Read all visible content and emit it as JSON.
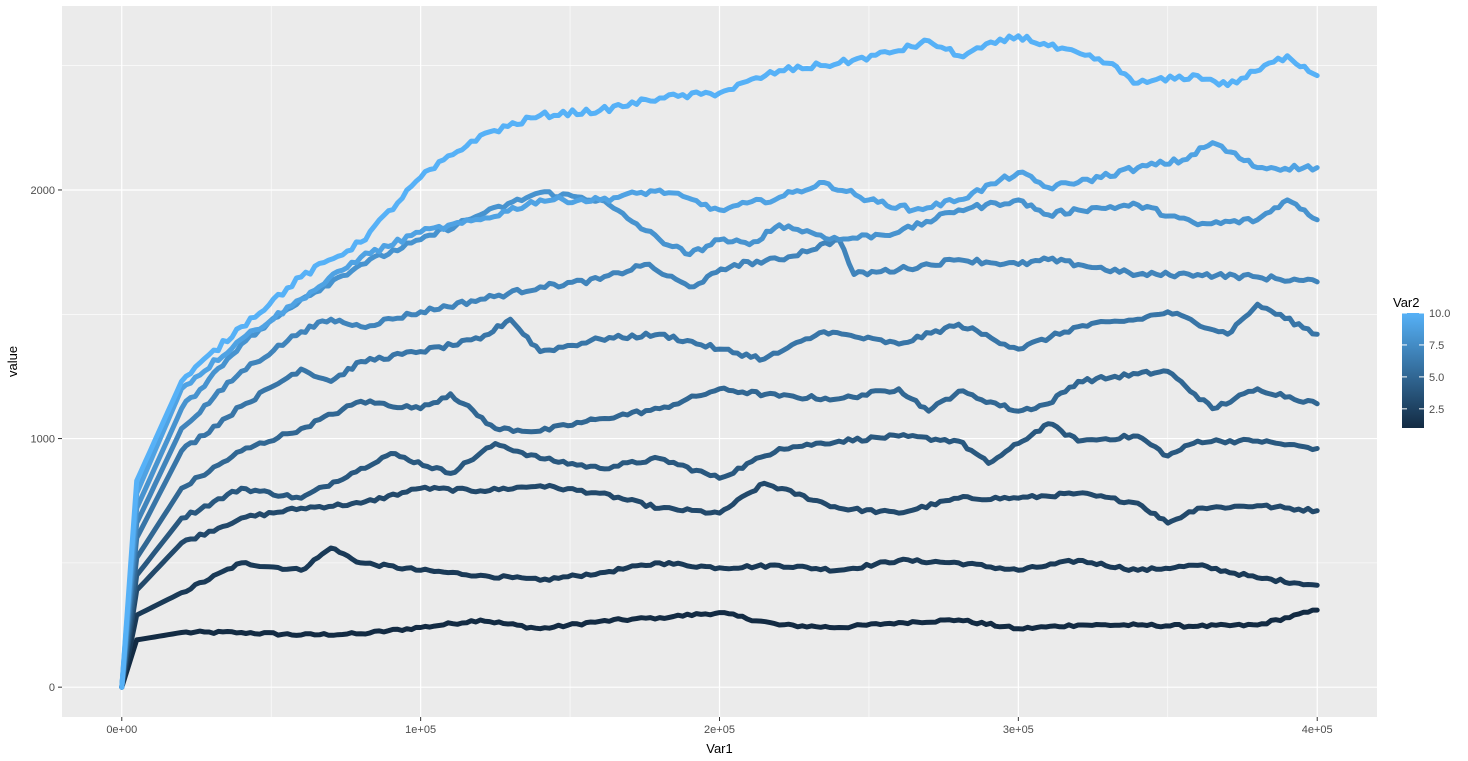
{
  "chart_data": {
    "type": "line",
    "xlabel": "Var1",
    "ylabel": "value",
    "xlim": [
      -20000,
      420000
    ],
    "ylim": [
      -120,
      2740
    ],
    "grid": true,
    "x_ticks": [
      0,
      100000,
      200000,
      300000,
      400000
    ],
    "x_tick_labels": [
      "0e+00",
      "1e+05",
      "2e+05",
      "3e+05",
      "4e+05"
    ],
    "y_ticks": [
      0,
      1000,
      2000
    ],
    "y_tick_labels": [
      "0",
      "1000",
      "2000"
    ],
    "legend": {
      "title": "Var2",
      "position": "right",
      "type": "colorbar",
      "range": [
        1,
        10
      ],
      "breaks": [
        2.5,
        5.0,
        7.5,
        10.0
      ],
      "break_labels": [
        "2.5",
        "5.0",
        "7.5",
        "10.0"
      ],
      "low_color": "#132B43",
      "high_color": "#56B1F7"
    },
    "colors": {
      "panel_background": "#EBEBEB",
      "grid_major": "#FFFFFF",
      "low": "#132B43",
      "high": "#56B1F7"
    },
    "series": [
      {
        "var2": 1,
        "x": [
          0,
          5000,
          20000,
          40000,
          60000,
          80000,
          100000,
          120000,
          140000,
          160000,
          180000,
          200000,
          220000,
          240000,
          260000,
          280000,
          300000,
          320000,
          340000,
          360000,
          380000,
          400000
        ],
        "y": [
          0,
          190,
          220,
          220,
          210,
          215,
          240,
          270,
          235,
          265,
          280,
          300,
          250,
          240,
          260,
          270,
          235,
          250,
          250,
          245,
          250,
          310
        ]
      },
      {
        "var2": 2,
        "x": [
          0,
          5000,
          20000,
          40000,
          60000,
          70000,
          80000,
          100000,
          120000,
          140000,
          160000,
          180000,
          200000,
          220000,
          240000,
          260000,
          280000,
          300000,
          320000,
          340000,
          360000,
          380000,
          400000
        ],
        "y": [
          0,
          290,
          380,
          500,
          470,
          560,
          500,
          470,
          450,
          430,
          460,
          500,
          480,
          490,
          470,
          510,
          500,
          470,
          510,
          470,
          490,
          440,
          410
        ]
      },
      {
        "var2": 3,
        "x": [
          0,
          5000,
          20000,
          40000,
          60000,
          80000,
          100000,
          120000,
          140000,
          160000,
          180000,
          200000,
          215000,
          240000,
          260000,
          280000,
          300000,
          320000,
          340000,
          350000,
          360000,
          380000,
          400000
        ],
        "y": [
          0,
          390,
          580,
          680,
          720,
          740,
          800,
          790,
          810,
          780,
          720,
          700,
          820,
          720,
          700,
          760,
          760,
          780,
          740,
          660,
          720,
          730,
          710
        ]
      },
      {
        "var2": 4,
        "x": [
          0,
          5000,
          20000,
          40000,
          60000,
          80000,
          90000,
          110000,
          125000,
          140000,
          160000,
          180000,
          200000,
          220000,
          240000,
          260000,
          280000,
          290000,
          300000,
          310000,
          320000,
          340000,
          350000,
          360000,
          380000,
          400000
        ],
        "y": [
          0,
          450,
          680,
          800,
          760,
          880,
          940,
          860,
          980,
          920,
          880,
          920,
          840,
          960,
          990,
          1010,
          990,
          900,
          980,
          1060,
          990,
          1010,
          930,
          990,
          990,
          960
        ]
      },
      {
        "var2": 5,
        "x": [
          0,
          5000,
          20000,
          40000,
          60000,
          80000,
          100000,
          110000,
          125000,
          140000,
          160000,
          180000,
          200000,
          220000,
          240000,
          260000,
          270000,
          280000,
          300000,
          310000,
          320000,
          340000,
          350000,
          365000,
          380000,
          400000
        ],
        "y": [
          0,
          520,
          800,
          950,
          1040,
          1150,
          1120,
          1180,
          1040,
          1030,
          1080,
          1120,
          1200,
          1170,
          1160,
          1200,
          1110,
          1190,
          1110,
          1140,
          1230,
          1260,
          1270,
          1120,
          1200,
          1140
        ]
      },
      {
        "var2": 6,
        "x": [
          0,
          5000,
          20000,
          40000,
          60000,
          70000,
          80000,
          100000,
          120000,
          130000,
          140000,
          160000,
          180000,
          200000,
          215000,
          235000,
          260000,
          280000,
          300000,
          320000,
          340000,
          350000,
          370000,
          380000,
          400000
        ],
        "y": [
          0,
          600,
          950,
          1130,
          1280,
          1230,
          1310,
          1350,
          1400,
          1480,
          1350,
          1400,
          1420,
          1360,
          1320,
          1430,
          1380,
          1460,
          1360,
          1450,
          1480,
          1510,
          1420,
          1540,
          1420
        ]
      },
      {
        "var2": 7,
        "x": [
          0,
          5000,
          20000,
          40000,
          60000,
          70000,
          80000,
          100000,
          120000,
          140000,
          160000,
          175000,
          190000,
          205000,
          220000,
          240000,
          245000,
          260000,
          280000,
          300000,
          310000,
          320000,
          340000,
          360000,
          380000,
          400000
        ],
        "y": [
          0,
          660,
          1040,
          1270,
          1430,
          1480,
          1450,
          1510,
          1560,
          1610,
          1640,
          1700,
          1610,
          1700,
          1720,
          1800,
          1660,
          1680,
          1720,
          1700,
          1720,
          1700,
          1660,
          1660,
          1650,
          1630
        ]
      },
      {
        "var2": 8,
        "x": [
          0,
          5000,
          20000,
          40000,
          60000,
          80000,
          100000,
          120000,
          140000,
          160000,
          180000,
          190000,
          200000,
          210000,
          220000,
          240000,
          260000,
          280000,
          300000,
          310000,
          320000,
          340000,
          360000,
          380000,
          390000,
          400000
        ],
        "y": [
          0,
          720,
          1120,
          1380,
          1560,
          1700,
          1800,
          1900,
          1990,
          1960,
          1800,
          1740,
          1800,
          1780,
          1860,
          1800,
          1830,
          1920,
          1960,
          1900,
          1920,
          1940,
          1860,
          1880,
          1960,
          1880
        ]
      },
      {
        "var2": 9,
        "x": [
          0,
          5000,
          20000,
          40000,
          60000,
          80000,
          100000,
          120000,
          140000,
          160000,
          180000,
          200000,
          220000,
          235000,
          250000,
          265000,
          280000,
          300000,
          310000,
          320000,
          340000,
          355000,
          365000,
          380000,
          400000
        ],
        "y": [
          0,
          780,
          1200,
          1400,
          1560,
          1730,
          1830,
          1880,
          1960,
          1960,
          2000,
          1920,
          1970,
          2030,
          1960,
          1920,
          1960,
          2070,
          2010,
          2030,
          2090,
          2120,
          2190,
          2090,
          2090
        ]
      },
      {
        "var2": 10,
        "x": [
          0,
          5000,
          20000,
          40000,
          60000,
          80000,
          100000,
          120000,
          140000,
          160000,
          180000,
          200000,
          220000,
          240000,
          260000,
          270000,
          280000,
          300000,
          310000,
          330000,
          340000,
          360000,
          370000,
          390000,
          400000
        ],
        "y": [
          0,
          830,
          1230,
          1450,
          1650,
          1790,
          2050,
          2220,
          2300,
          2320,
          2370,
          2390,
          2480,
          2510,
          2560,
          2600,
          2540,
          2620,
          2580,
          2510,
          2430,
          2460,
          2420,
          2540,
          2460
        ]
      }
    ]
  }
}
